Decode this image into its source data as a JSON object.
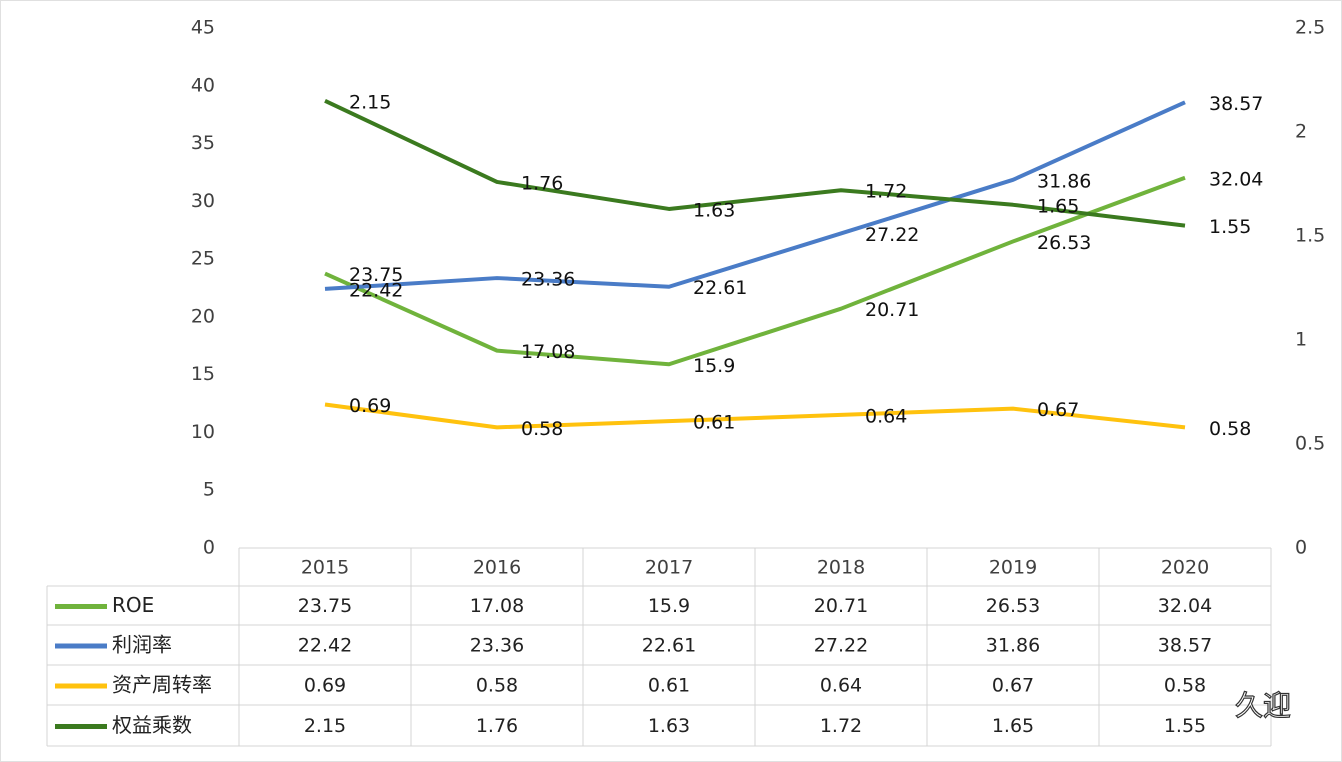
{
  "chart_data": {
    "type": "line",
    "categories": [
      "2015",
      "2016",
      "2017",
      "2018",
      "2019",
      "2020"
    ],
    "series": [
      {
        "name": "ROE",
        "color": "#70b33c",
        "values": [
          23.75,
          17.08,
          15.9,
          20.71,
          26.53,
          32.04
        ]
      },
      {
        "name": "利润率",
        "color": "#4a7cc7",
        "values": [
          22.42,
          23.36,
          22.61,
          27.22,
          31.86,
          38.57
        ]
      },
      {
        "name": "资产周转率",
        "color": "#ffc20e",
        "axis": "y2",
        "values": [
          0.69,
          0.58,
          0.61,
          0.64,
          0.67,
          0.58
        ]
      },
      {
        "name": "权益乘数",
        "color": "#3b7a1f",
        "axis": "y2",
        "values": [
          2.15,
          1.76,
          1.63,
          1.72,
          1.65,
          1.55
        ]
      }
    ],
    "ylim": [
      0,
      45
    ],
    "yticks": [
      0,
      5,
      10,
      15,
      20,
      25,
      30,
      35,
      40,
      45
    ],
    "y2lim": [
      0,
      2.5
    ],
    "y2ticks": [
      0,
      0.5,
      1,
      1.5,
      2,
      2.5
    ],
    "grid": false,
    "data_table": true,
    "watermark": "久迎"
  }
}
